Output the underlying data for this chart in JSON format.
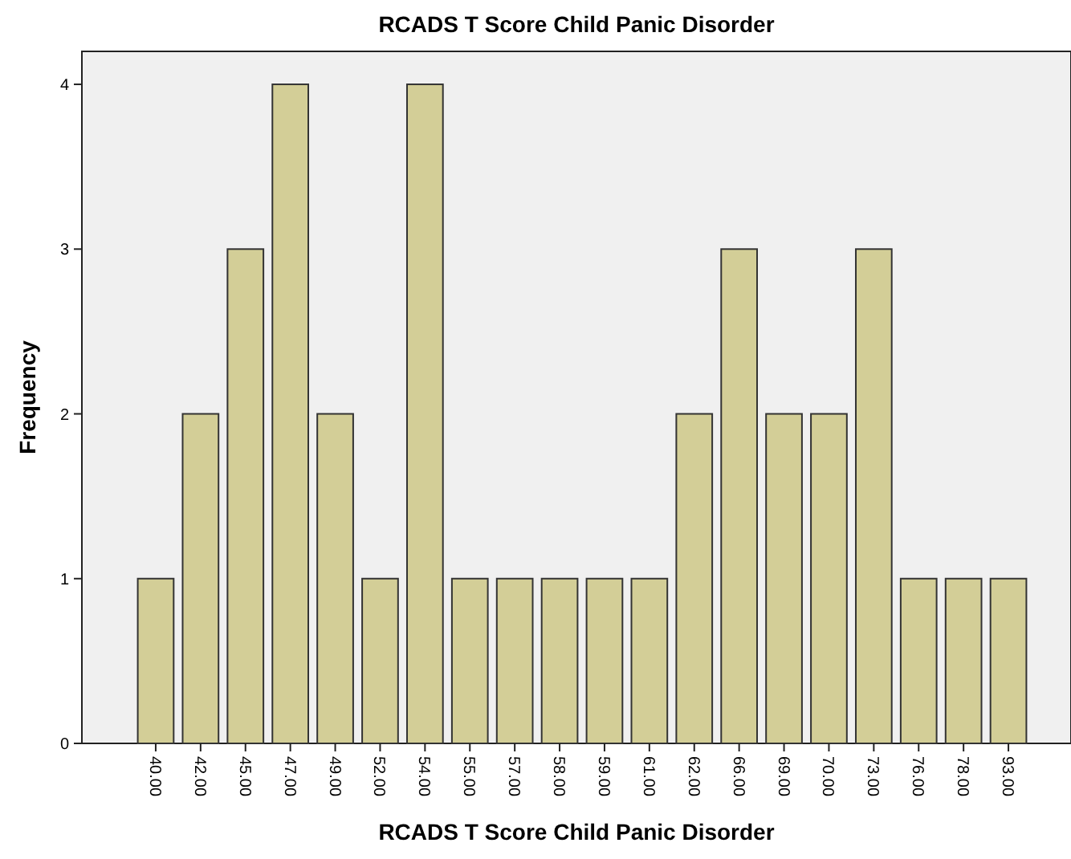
{
  "chart_data": {
    "type": "bar",
    "title": "RCADS T Score Child Panic Disorder",
    "xlabel": "RCADS T Score Child Panic Disorder",
    "ylabel": "Frequency",
    "categories": [
      "40.00",
      "42.00",
      "45.00",
      "47.00",
      "49.00",
      "52.00",
      "54.00",
      "55.00",
      "57.00",
      "58.00",
      "59.00",
      "61.00",
      "62.00",
      "66.00",
      "69.00",
      "70.00",
      "73.00",
      "76.00",
      "78.00",
      "93.00"
    ],
    "values": [
      1,
      2,
      3,
      4,
      2,
      1,
      4,
      1,
      1,
      1,
      1,
      1,
      2,
      3,
      2,
      2,
      3,
      1,
      1,
      1
    ],
    "color": "#d3ce97",
    "ylim": [
      0,
      4.2
    ],
    "yticks": [
      0,
      1,
      2,
      3,
      4
    ],
    "grid": false
  }
}
